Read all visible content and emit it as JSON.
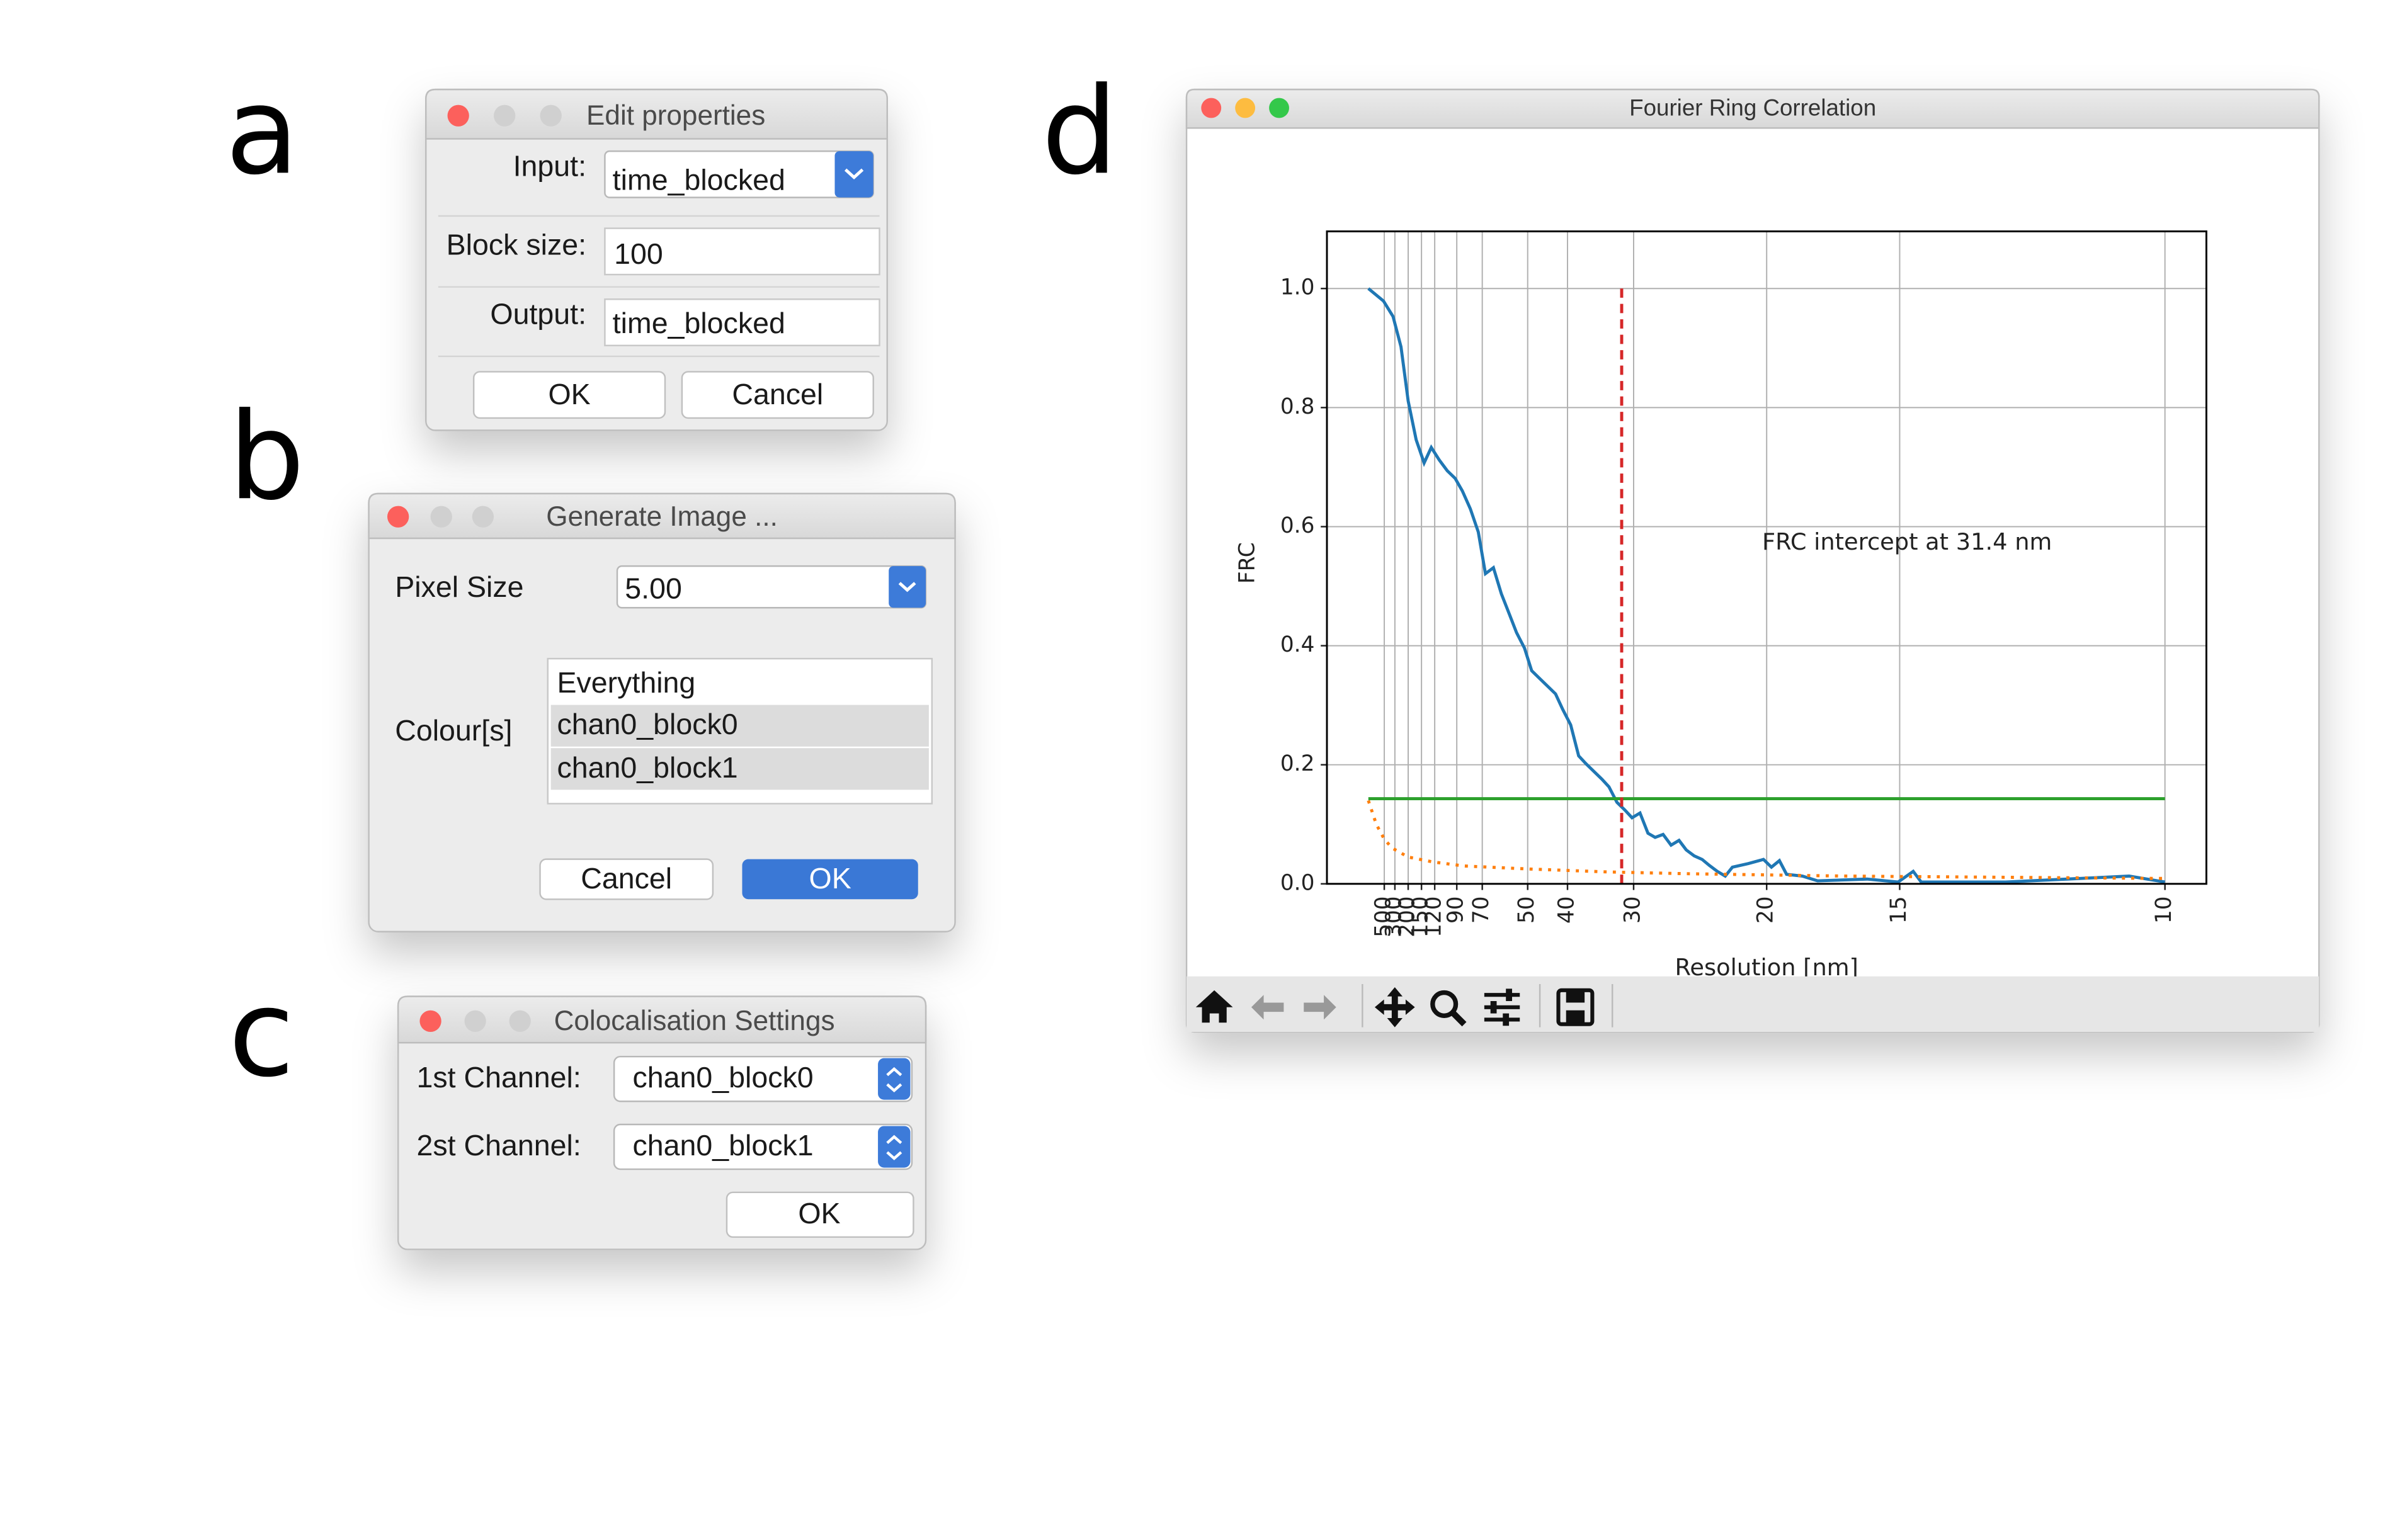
{
  "panels": {
    "a": {
      "label": "a",
      "window_title": "Edit properties",
      "fields": [
        {
          "label": "Input:",
          "value": "time_blocked"
        },
        {
          "label": "Block size:",
          "value": "100"
        },
        {
          "label": "Output:",
          "value": "time_blocked"
        }
      ],
      "buttons": [
        "OK",
        "Cancel"
      ]
    },
    "b": {
      "label": "b",
      "window_title": "Generate Image ...",
      "fields": [
        {
          "label": "Pixel Size",
          "value": "5.00"
        }
      ],
      "list_label": "Colour[s]",
      "list_items": [
        "Everything",
        "chan0_block0",
        "chan0_block1"
      ],
      "buttons": [
        "Cancel",
        "OK"
      ]
    },
    "c": {
      "label": "c",
      "window_title": "Colocalisation Settings",
      "fields": [
        {
          "label": "1st Channel:",
          "value": "chan0_block0"
        },
        {
          "label": "2st Channel:",
          "value": "chan0_block1"
        }
      ],
      "buttons": [
        "OK"
      ]
    },
    "d": {
      "label": "d",
      "window_title": "Fourier Ring Correlation"
    }
  },
  "chart_data": {
    "type": "line",
    "ylabel": "FRC",
    "xlabel": "Resolution [nm]",
    "annotation": "FRC intercept at 31.4 nm",
    "xlim": [
      -0.0052,
      0.1052
    ],
    "ylim": [
      0,
      1.096
    ],
    "grid": true,
    "xticks": [
      {
        "value": 0.002,
        "label": "500"
      },
      {
        "value": 0.00333,
        "label": "300"
      },
      {
        "value": 0.005,
        "label": "200"
      },
      {
        "value": 0.00667,
        "label": "150"
      },
      {
        "value": 0.00833,
        "label": "120"
      },
      {
        "value": 0.0111,
        "label": "90"
      },
      {
        "value": 0.0143,
        "label": "70"
      },
      {
        "value": 0.02,
        "label": "50"
      },
      {
        "value": 0.025,
        "label": "40"
      },
      {
        "value": 0.0333,
        "label": "30"
      },
      {
        "value": 0.05,
        "label": "20"
      },
      {
        "value": 0.0667,
        "label": "15"
      },
      {
        "value": 0.1,
        "label": "10"
      }
    ],
    "yticks": [
      {
        "value": 0,
        "label": "0.0"
      },
      {
        "value": 0.2,
        "label": "0.2"
      },
      {
        "value": 0.4,
        "label": "0.4"
      },
      {
        "value": 0.6,
        "label": "0.6"
      },
      {
        "value": 0.8,
        "label": "0.8"
      },
      {
        "value": 1,
        "label": "1.0"
      }
    ],
    "series": [
      {
        "color": "#1f77b4",
        "style": "solid",
        "x": [
          0,
          0.0019,
          0.0031,
          0.0041,
          0.005,
          0.006,
          0.007,
          0.0079,
          0.0089,
          0.0099,
          0.0109,
          0.0118,
          0.0128,
          0.0138,
          0.0147,
          0.0157,
          0.0167,
          0.0177,
          0.0186,
          0.0196,
          0.0205,
          0.0215,
          0.0225,
          0.0235,
          0.0244,
          0.0254,
          0.0264,
          0.0273,
          0.0283,
          0.0293,
          0.0302,
          0.0312,
          0.0322,
          0.0331,
          0.0341,
          0.0351,
          0.036,
          0.037,
          0.038,
          0.039,
          0.0399,
          0.0409,
          0.0419,
          0.0428,
          0.0438,
          0.0448,
          0.0457,
          0.0477,
          0.0496,
          0.0506,
          0.0516,
          0.0525,
          0.0545,
          0.0564,
          0.0626,
          0.0665,
          0.0684,
          0.0694,
          0.08,
          0.0955,
          0.1
        ],
        "values": [
          1.0,
          0.979,
          0.953,
          0.902,
          0.811,
          0.746,
          0.707,
          0.733,
          0.712,
          0.694,
          0.681,
          0.66,
          0.63,
          0.591,
          0.521,
          0.531,
          0.487,
          0.453,
          0.422,
          0.396,
          0.358,
          0.345,
          0.332,
          0.319,
          0.293,
          0.267,
          0.215,
          0.202,
          0.189,
          0.176,
          0.163,
          0.137,
          0.124,
          0.111,
          0.119,
          0.085,
          0.078,
          0.083,
          0.065,
          0.073,
          0.057,
          0.047,
          0.041,
          0.031,
          0.021,
          0.013,
          0.028,
          0.034,
          0.041,
          0.028,
          0.039,
          0.016,
          0.013,
          0.005,
          0.008,
          0.003,
          0.021,
          0.003,
          0.003,
          0.013,
          0.003
        ]
      },
      {
        "color": "#ff7f0e",
        "style": "dotted",
        "x": [
          0,
          0.001,
          0.002,
          0.003,
          0.005,
          0.008,
          0.012,
          0.02,
          0.03,
          0.04,
          0.05,
          0.06,
          0.07,
          0.08,
          0.09,
          0.1
        ],
        "values": [
          0.14,
          0.1,
          0.075,
          0.06,
          0.045,
          0.037,
          0.03,
          0.025,
          0.02,
          0.017,
          0.015,
          0.013,
          0.012,
          0.011,
          0.01,
          0.009
        ]
      },
      {
        "color": "#2ca02c",
        "style": "solid",
        "x": [
          0,
          0.1
        ],
        "values": [
          0.143,
          0.143
        ]
      },
      {
        "color": "#d62728",
        "style": "dashed",
        "x": [
          0.0318,
          0.0318
        ],
        "values": [
          0,
          1.0
        ]
      }
    ]
  }
}
